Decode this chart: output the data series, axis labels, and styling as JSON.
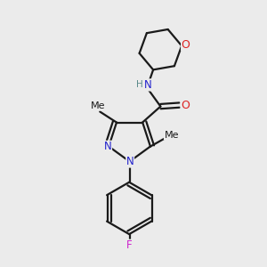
{
  "bg_color": "#ebebeb",
  "bond_color": "#1a1a1a",
  "bond_width": 1.6,
  "atom_colors": {
    "N": "#2222cc",
    "O": "#dd2222",
    "F": "#cc22cc",
    "C": "#1a1a1a",
    "H": "#5a8a8a"
  },
  "font_size": 8.5,
  "fig_size": [
    3.0,
    3.0
  ],
  "dpi": 100
}
